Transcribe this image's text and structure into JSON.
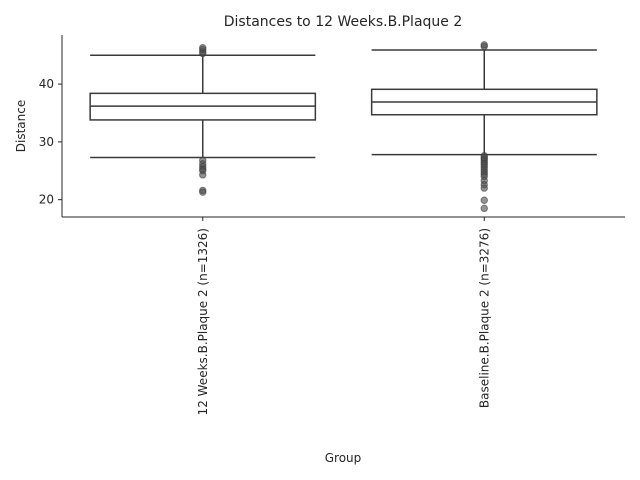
{
  "chart_data": {
    "type": "box",
    "title": "Distances to 12 Weeks.B.Plaque 2",
    "xlabel": "Group",
    "ylabel": "Distance",
    "ylim": [
      17,
      48.5
    ],
    "yticks": [
      20,
      30,
      40
    ],
    "grid": false,
    "categories": [
      "12 Weeks.B.Plaque 2 (n=1326)",
      "Baseline.B.Plaque 2 (n=3276)"
    ],
    "boxes": [
      {
        "whisker_low": 27.3,
        "q1": 33.8,
        "median": 36.2,
        "q3": 38.4,
        "whisker_high": 45.0,
        "outliers_low": [
          26.8,
          26.2,
          25.7,
          25.3,
          25.0,
          24.3,
          21.6,
          21.3
        ],
        "outliers_high": [
          45.3,
          45.6,
          46.0,
          46.3
        ]
      },
      {
        "whisker_low": 27.8,
        "q1": 34.7,
        "median": 36.9,
        "q3": 39.1,
        "whisker_high": 45.9,
        "outliers_low": [
          27.6,
          27.3,
          27.0,
          26.7,
          26.3,
          26.0,
          25.6,
          25.2,
          24.8,
          24.4,
          24.0,
          23.3,
          22.6,
          22.0,
          19.9,
          18.5
        ],
        "outliers_high": [
          46.5,
          46.8
        ]
      }
    ]
  }
}
